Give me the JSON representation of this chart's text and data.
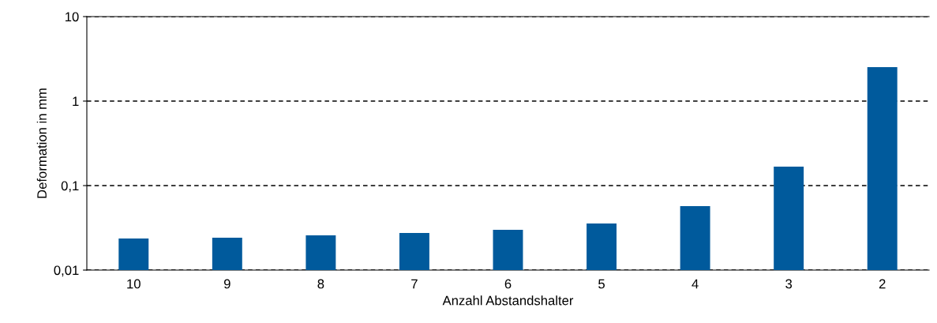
{
  "chart_data": {
    "type": "bar",
    "xlabel": "Anzahl Abstandshalter",
    "ylabel": "Deformation in mm",
    "categories": [
      "10",
      "9",
      "8",
      "7",
      "6",
      "5",
      "4",
      "3",
      "2"
    ],
    "values": [
      0.0237,
      0.0242,
      0.0258,
      0.0275,
      0.03,
      0.0356,
      0.057,
      0.168,
      2.52
    ],
    "color": "#005a9c",
    "log": true,
    "ylim": [
      0.01,
      10
    ],
    "yticks": [
      {
        "value": 0.01,
        "label": "0,01"
      },
      {
        "value": 0.1,
        "label": "0,1"
      },
      1,
      10
    ],
    "grid": "y"
  }
}
